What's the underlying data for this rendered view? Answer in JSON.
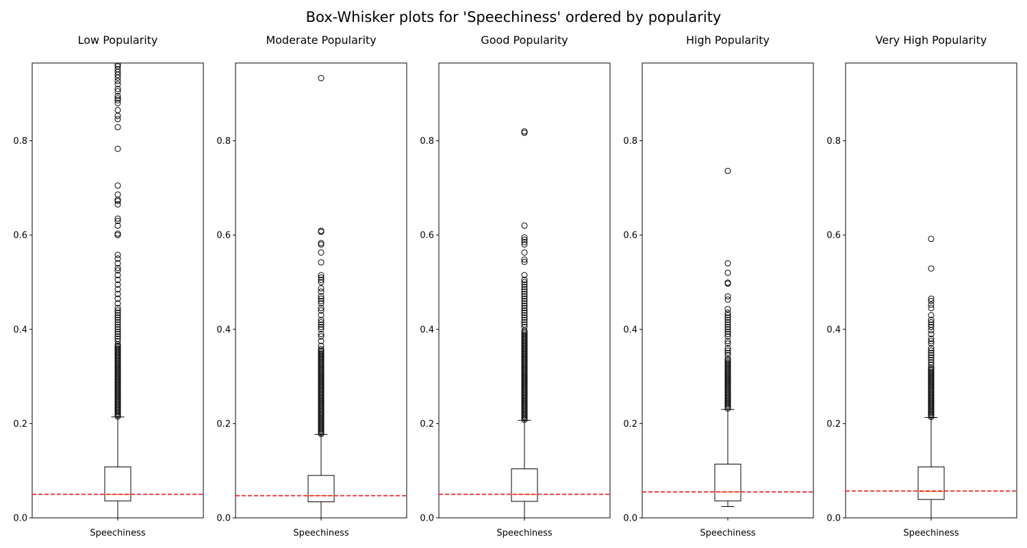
{
  "chart_data": {
    "type": "box",
    "title": "Box-Whisker plots for 'Speechiness' ordered by popularity",
    "ylim": [
      0,
      0.965
    ],
    "yticks": [
      0.0,
      0.2,
      0.4,
      0.6,
      0.8
    ],
    "ytick_labels": [
      "0.0",
      "0.2",
      "0.4",
      "0.6",
      "0.8"
    ],
    "grid": false,
    "reference_line": {
      "style": "dashed",
      "color": "#e8232a"
    },
    "colors": {
      "box": "#000000",
      "median": "#ff7f0e",
      "reference": "#e8232a",
      "flier": "#000000"
    },
    "panels": [
      {
        "title": "Low Popularity",
        "xlabel": "Speechiness",
        "whisker_low": 0.0,
        "q1": 0.036,
        "median": 0.05,
        "q3": 0.108,
        "whisker_high": 0.214,
        "reference": 0.05,
        "outliers_dense_range": [
          0.215,
          0.37
        ],
        "outliers": [
          0.375,
          0.38,
          0.385,
          0.39,
          0.395,
          0.4,
          0.405,
          0.41,
          0.415,
          0.42,
          0.425,
          0.43,
          0.435,
          0.44,
          0.445,
          0.455,
          0.465,
          0.475,
          0.485,
          0.495,
          0.505,
          0.515,
          0.525,
          0.53,
          0.54,
          0.55,
          0.558,
          0.6,
          0.603,
          0.62,
          0.63,
          0.635,
          0.665,
          0.672,
          0.675,
          0.686,
          0.705,
          0.783,
          0.829,
          0.846,
          0.853,
          0.865,
          0.88,
          0.886,
          0.89,
          0.895,
          0.905,
          0.91,
          0.92,
          0.927,
          0.934,
          0.94,
          0.946,
          0.952,
          0.958,
          0.962
        ]
      },
      {
        "title": "Moderate Popularity",
        "xlabel": "Speechiness",
        "whisker_low": 0.0,
        "q1": 0.034,
        "median": 0.047,
        "q3": 0.09,
        "whisker_high": 0.177,
        "reference": 0.047,
        "outliers_dense_range": [
          0.178,
          0.36
        ],
        "outliers": [
          0.365,
          0.375,
          0.385,
          0.39,
          0.4,
          0.405,
          0.41,
          0.415,
          0.42,
          0.43,
          0.44,
          0.445,
          0.455,
          0.46,
          0.465,
          0.47,
          0.48,
          0.487,
          0.5,
          0.505,
          0.51,
          0.515,
          0.542,
          0.563,
          0.58,
          0.583,
          0.607,
          0.609,
          0.933
        ]
      },
      {
        "title": "Good Popularity",
        "xlabel": "Speechiness",
        "whisker_low": 0.0,
        "q1": 0.035,
        "median": 0.05,
        "q3": 0.104,
        "whisker_high": 0.207,
        "reference": 0.05,
        "outliers_dense_range": [
          0.208,
          0.4
        ],
        "outliers": [
          0.405,
          0.41,
          0.415,
          0.42,
          0.425,
          0.43,
          0.435,
          0.44,
          0.445,
          0.45,
          0.455,
          0.46,
          0.465,
          0.47,
          0.475,
          0.48,
          0.485,
          0.49,
          0.495,
          0.5,
          0.505,
          0.515,
          0.543,
          0.548,
          0.563,
          0.58,
          0.585,
          0.59,
          0.595,
          0.62,
          0.817,
          0.82
        ]
      },
      {
        "title": "High Popularity",
        "xlabel": "Speechiness",
        "whisker_low": 0.024,
        "q1": 0.036,
        "median": 0.055,
        "q3": 0.114,
        "whisker_high": 0.23,
        "reference": 0.055,
        "outliers_dense_range": [
          0.232,
          0.34
        ],
        "outliers": [
          0.345,
          0.35,
          0.355,
          0.36,
          0.37,
          0.375,
          0.385,
          0.39,
          0.395,
          0.4,
          0.405,
          0.41,
          0.415,
          0.42,
          0.425,
          0.43,
          0.435,
          0.443,
          0.463,
          0.47,
          0.497,
          0.499,
          0.52,
          0.54,
          0.736
        ]
      },
      {
        "title": "Very High Popularity",
        "xlabel": "Speechiness",
        "whisker_low": 0.0,
        "q1": 0.039,
        "median": 0.056,
        "q3": 0.108,
        "whisker_high": 0.213,
        "reference": 0.057,
        "outliers_dense_range": [
          0.214,
          0.32
        ],
        "outliers": [
          0.325,
          0.33,
          0.335,
          0.34,
          0.345,
          0.35,
          0.355,
          0.36,
          0.37,
          0.375,
          0.38,
          0.39,
          0.398,
          0.405,
          0.41,
          0.415,
          0.42,
          0.43,
          0.445,
          0.452,
          0.46,
          0.465,
          0.529,
          0.592
        ]
      }
    ]
  }
}
